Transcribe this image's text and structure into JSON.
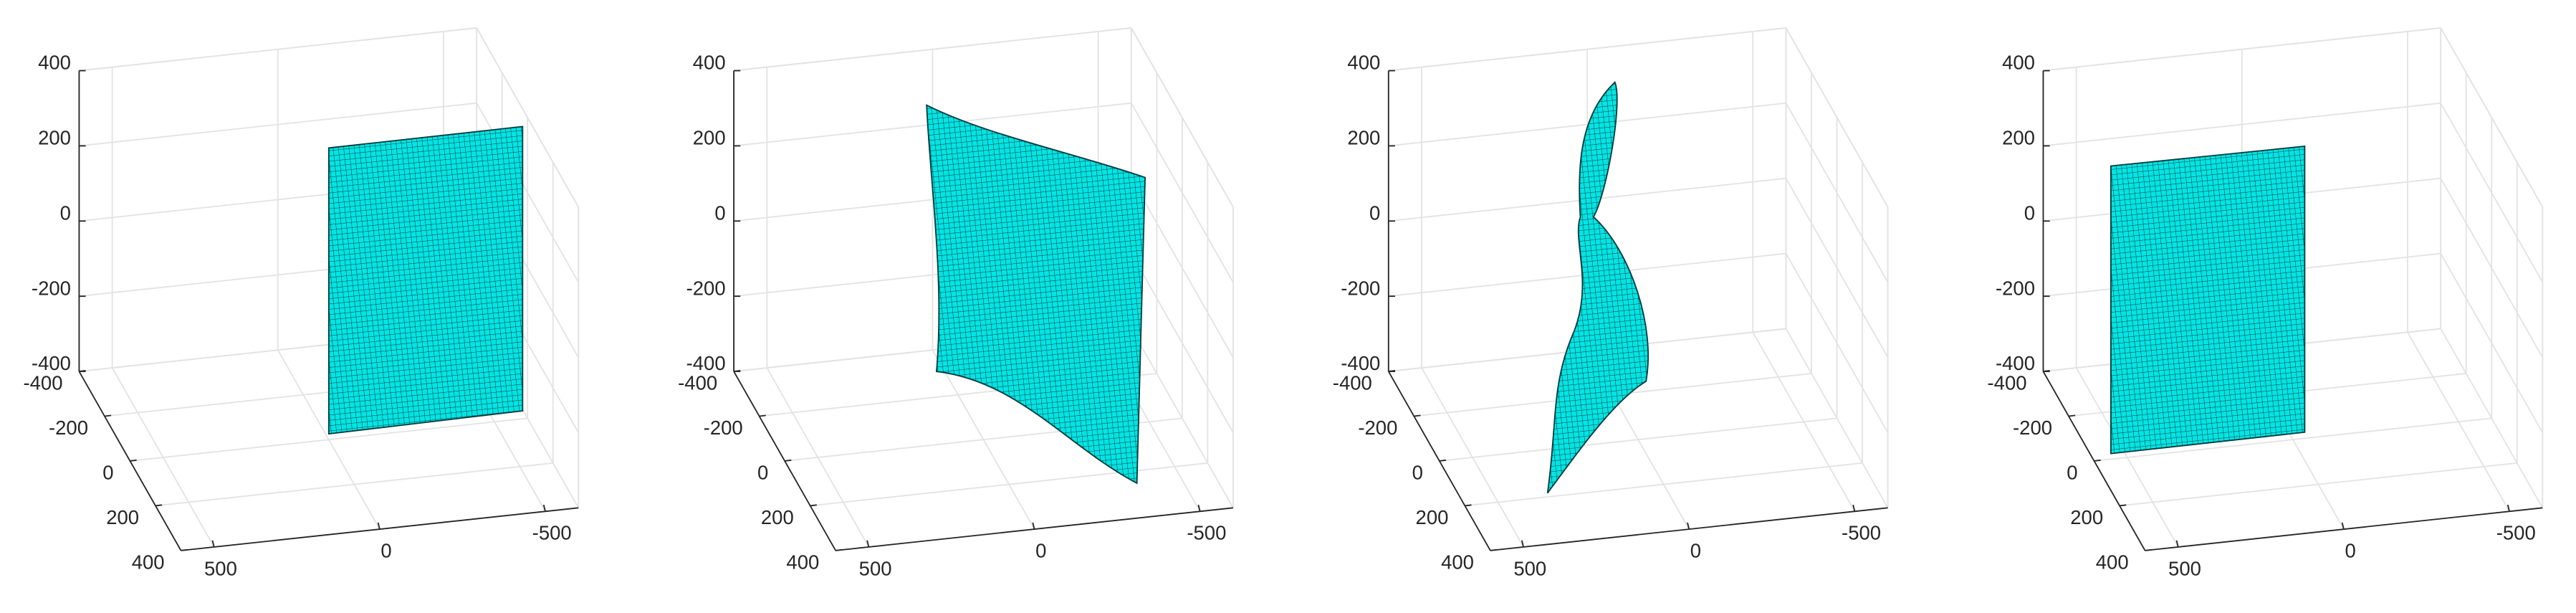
{
  "chart_data": [
    {
      "type": "surface",
      "color": "#00e5e5",
      "grid": true,
      "xlim": [
        -600,
        600
      ],
      "xticks": [
        -500,
        0,
        500
      ],
      "ylim": [
        -400,
        400
      ],
      "yticks": [
        -400,
        -200,
        0,
        200,
        400
      ],
      "zlim": [
        -400,
        400
      ],
      "zticks": [
        -400,
        -200,
        0,
        200,
        400
      ]
    },
    {
      "type": "surface",
      "color": "#00e5e5",
      "grid": true,
      "xlim": [
        -600,
        600
      ],
      "xticks": [
        -500,
        0,
        500
      ],
      "ylim": [
        -400,
        400
      ],
      "yticks": [
        -400,
        -200,
        0,
        200,
        400
      ],
      "zlim": [
        -400,
        400
      ],
      "zticks": [
        -400,
        -200,
        0,
        200,
        400
      ]
    },
    {
      "type": "surface",
      "color": "#00e5e5",
      "grid": true,
      "xlim": [
        -600,
        600
      ],
      "xticks": [
        -500,
        0,
        500
      ],
      "ylim": [
        -400,
        400
      ],
      "yticks": [
        -400,
        -200,
        0,
        200,
        400
      ],
      "zlim": [
        -400,
        400
      ],
      "zticks": [
        -400,
        -200,
        0,
        200,
        400
      ]
    },
    {
      "type": "surface",
      "color": "#00e5e5",
      "grid": true,
      "xlim": [
        -600,
        600
      ],
      "xticks": [
        -500,
        0,
        500
      ],
      "ylim": [
        -400,
        400
      ],
      "yticks": [
        -400,
        -200,
        0,
        200,
        400
      ],
      "zlim": [
        -400,
        400
      ],
      "zticks": [
        -400,
        -200,
        0,
        200,
        400
      ]
    }
  ]
}
